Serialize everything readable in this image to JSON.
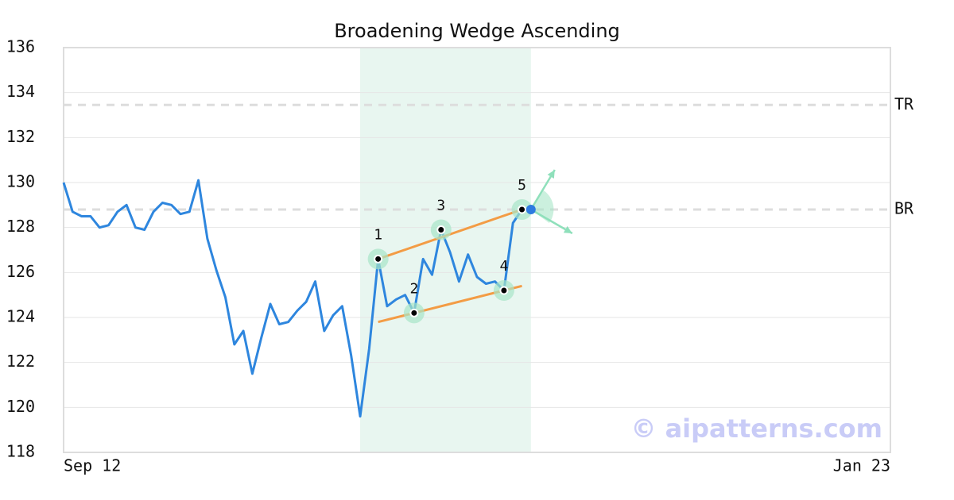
{
  "chart_data": {
    "type": "line",
    "title": "Broadening Wedge Ascending",
    "categories": [
      "Sep 12",
      null,
      null,
      null,
      null,
      null,
      null,
      null,
      null,
      null,
      null,
      null,
      null,
      null,
      null,
      null,
      null,
      null,
      null,
      null,
      null,
      null,
      null,
      null,
      null,
      null,
      null,
      null,
      null,
      null,
      null,
      null,
      null,
      null,
      null,
      null,
      null,
      null,
      null,
      null,
      null,
      null,
      null,
      null,
      null,
      null,
      null,
      null,
      null,
      null,
      null,
      null,
      null,
      null,
      null,
      null,
      null,
      null,
      null,
      null,
      null,
      null,
      null,
      null,
      null,
      null,
      null,
      null,
      null,
      null,
      null,
      null,
      null,
      null,
      null,
      null,
      null,
      null,
      null,
      null,
      null,
      null,
      null,
      null,
      null,
      null,
      null,
      null,
      null,
      null,
      null,
      null,
      "Jan 23"
    ],
    "values": [
      130.0,
      128.7,
      128.5,
      128.5,
      128.0,
      128.1,
      128.7,
      129.0,
      128.0,
      127.9,
      128.7,
      129.1,
      129.0,
      128.6,
      128.7,
      130.1,
      127.5,
      126.1,
      124.9,
      122.8,
      123.4,
      121.5,
      123.1,
      124.6,
      123.7,
      123.8,
      124.3,
      124.7,
      125.6,
      123.4,
      124.1,
      124.5,
      122.3,
      119.6,
      122.6,
      126.6,
      124.5,
      124.8,
      125.0,
      124.2,
      126.6,
      125.9,
      127.9,
      126.9,
      125.6,
      126.8,
      125.8,
      125.5,
      125.6,
      125.2,
      128.2,
      128.8,
      null,
      null,
      null,
      null,
      null,
      null,
      null,
      null,
      null,
      null,
      null,
      null,
      null,
      null,
      null,
      null,
      null,
      null,
      null,
      null,
      null,
      null,
      null,
      null,
      null,
      null,
      null,
      null,
      null,
      null,
      null,
      null,
      null,
      null,
      null,
      null,
      null,
      null,
      null,
      null,
      null
    ],
    "color": "#2e86de",
    "ylim": [
      118,
      136
    ],
    "yticks": [
      118,
      120,
      122,
      124,
      126,
      128,
      130,
      132,
      134,
      136
    ],
    "grid": true,
    "highlight": {
      "start": 33,
      "end": 52,
      "color": "#e8f6f0"
    },
    "levels": [
      {
        "label": "TR",
        "value": 133.45
      },
      {
        "label": "BR",
        "value": 128.8
      }
    ],
    "pattern_points": [
      {
        "label": "1",
        "index": 35,
        "value": 126.6
      },
      {
        "label": "2",
        "index": 39,
        "value": 124.2
      },
      {
        "label": "3",
        "index": 42,
        "value": 127.9
      },
      {
        "label": "4",
        "index": 49,
        "value": 125.2
      },
      {
        "label": "5",
        "index": 51,
        "value": 128.8
      }
    ],
    "trendlines": [
      {
        "x": [
          35,
          51
        ],
        "y": [
          126.6,
          128.8
        ]
      },
      {
        "x": [
          35,
          51
        ],
        "y": [
          123.8,
          125.4
        ]
      }
    ],
    "trend_color": "#f39c45",
    "current_point": {
      "index": 52,
      "value": 128.8,
      "color": "#2e7be0"
    },
    "watermark": "© aipatterns.com"
  }
}
